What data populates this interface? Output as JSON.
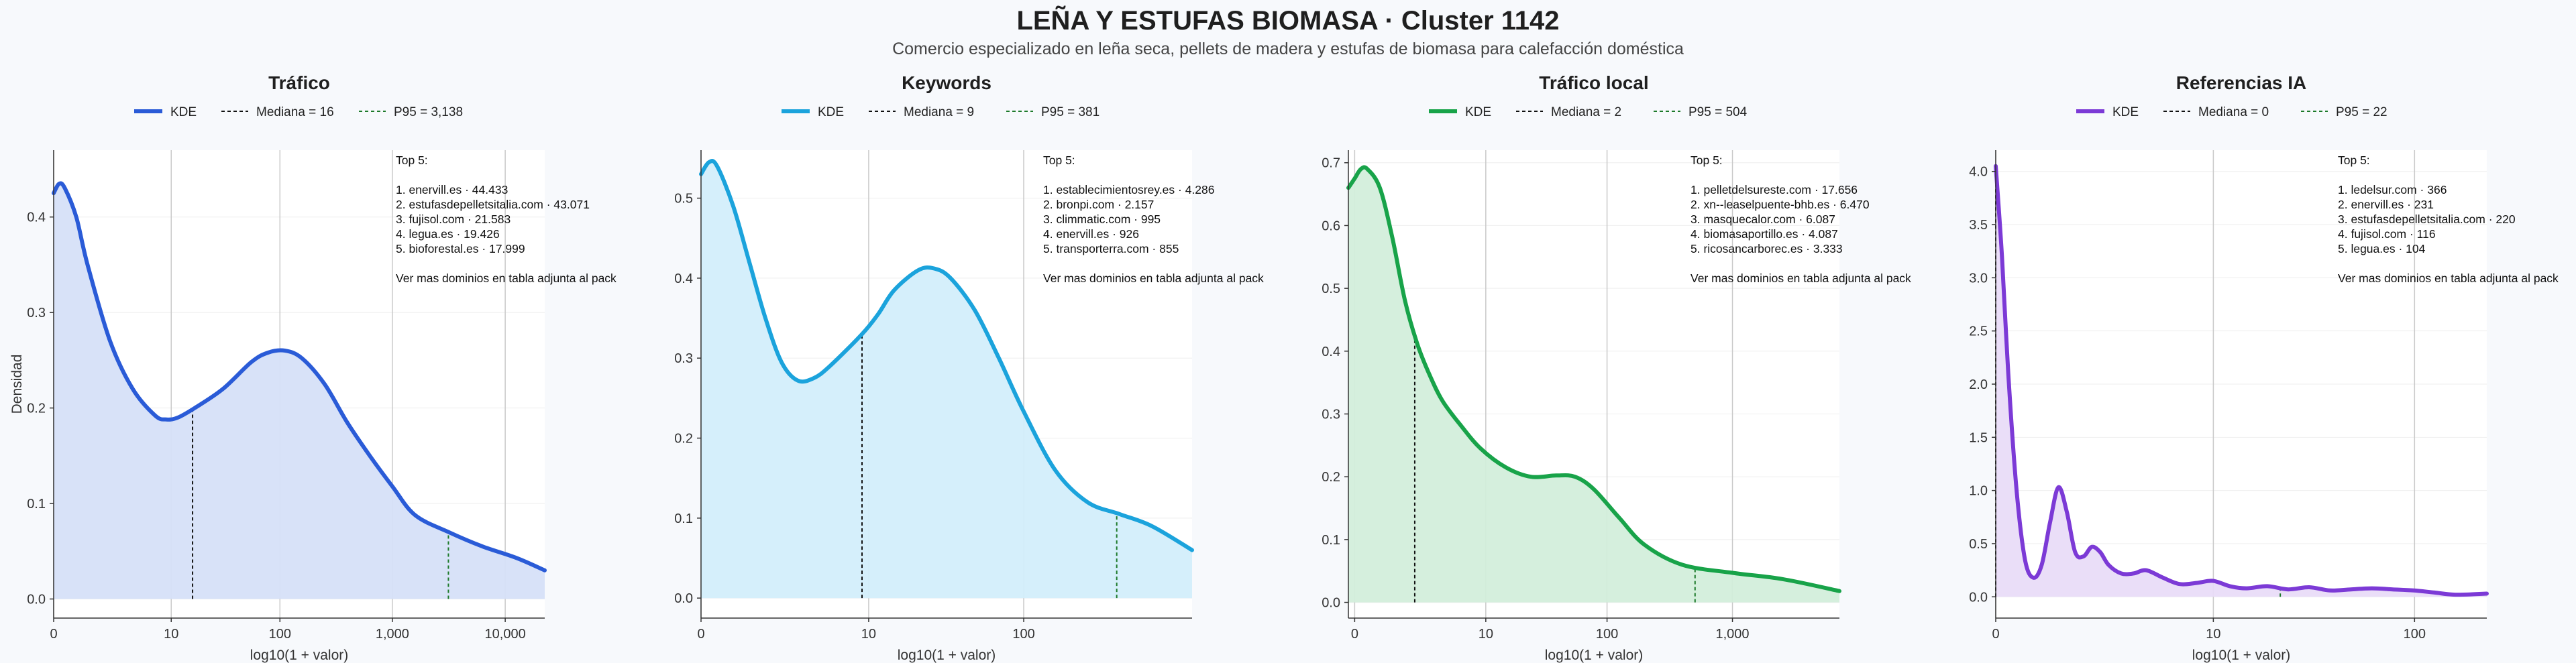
{
  "header": {
    "title": "LEÑA Y ESTUFAS BIOMASA · Cluster 1142",
    "subtitle": "Comercio especializado en leña seca, pellets de madera y estufas de biomasa para calefacción doméstica"
  },
  "chart_data": [
    {
      "type": "area",
      "title": "Tráfico",
      "xlabel": "log10(1 + valor)",
      "ylabel": "Densidad",
      "color": "#2a5bd7",
      "fill": "#d6e0f8",
      "x_scale": "log10(1+x)",
      "xlim": [
        0,
        4.35
      ],
      "ylim": [
        -0.02,
        0.47
      ],
      "x_ticks": [
        {
          "v": 0,
          "label": "0"
        },
        {
          "v": 10,
          "label": "10"
        },
        {
          "v": 100,
          "label": "100"
        },
        {
          "v": 1000,
          "label": "1,000"
        },
        {
          "v": 10000,
          "label": "10,000"
        }
      ],
      "y_ticks": [
        0.0,
        0.1,
        0.2,
        0.3,
        0.4
      ],
      "y_tick_labels": [
        "0.0",
        "0.1",
        "0.2",
        "0.3",
        "0.4"
      ],
      "legend": [
        "KDE",
        "Mediana = 16",
        "P95 = 3,138"
      ],
      "median": 16,
      "p95": 3138,
      "kde": {
        "x": [
          0,
          0.05,
          0.1,
          0.2,
          0.3,
          0.5,
          0.7,
          0.9,
          1.0,
          1.1,
          1.25,
          1.5,
          1.75,
          1.9,
          2.05,
          2.2,
          2.4,
          2.6,
          2.8,
          3.0,
          3.2,
          3.5,
          3.8,
          4.1,
          4.35
        ],
        "y": [
          0.425,
          0.435,
          0.43,
          0.4,
          0.35,
          0.27,
          0.22,
          0.192,
          0.188,
          0.19,
          0.2,
          0.22,
          0.248,
          0.258,
          0.26,
          0.252,
          0.225,
          0.185,
          0.15,
          0.118,
          0.088,
          0.07,
          0.055,
          0.043,
          0.03
        ]
      },
      "annotation": [
        "Top 5:",
        "",
        "1. enervill.es · 44.433",
        "2. estufasdepelletsitalia.com · 43.071",
        "3. fujisol.com · 21.583",
        "4. legua.es · 19.426",
        "5. bioforestal.es · 17.999",
        "",
        "Ver mas dominios en tabla adjunta al pack"
      ]
    },
    {
      "type": "area",
      "title": "Keywords",
      "xlabel": "log10(1 + valor)",
      "ylabel": "",
      "color": "#1ba3dc",
      "fill": "#d3eefb",
      "x_scale": "log10(1+x)",
      "xlim": [
        0,
        3.05
      ],
      "ylim": [
        -0.025,
        0.56
      ],
      "x_ticks": [
        {
          "v": 0,
          "label": "0"
        },
        {
          "v": 10,
          "label": "10"
        },
        {
          "v": 100,
          "label": "100"
        }
      ],
      "y_ticks": [
        0.0,
        0.1,
        0.2,
        0.3,
        0.4,
        0.5
      ],
      "y_tick_labels": [
        "0.0",
        "0.1",
        "0.2",
        "0.3",
        "0.4",
        "0.5"
      ],
      "legend": [
        "KDE",
        "Mediana = 9",
        "P95 = 381"
      ],
      "median": 9,
      "p95": 381,
      "kde": {
        "x": [
          0,
          0.05,
          0.1,
          0.2,
          0.3,
          0.4,
          0.5,
          0.6,
          0.7,
          0.8,
          1.0,
          1.1,
          1.2,
          1.35,
          1.45,
          1.55,
          1.7,
          1.85,
          2.0,
          2.2,
          2.4,
          2.6,
          2.8,
          3.05
        ],
        "y": [
          0.53,
          0.545,
          0.54,
          0.49,
          0.42,
          0.35,
          0.295,
          0.272,
          0.275,
          0.29,
          0.33,
          0.355,
          0.385,
          0.41,
          0.412,
          0.4,
          0.36,
          0.3,
          0.235,
          0.16,
          0.12,
          0.105,
          0.09,
          0.06
        ]
      },
      "annotation": [
        "Top 5:",
        "",
        "1. establecimientosrey.es · 4.286",
        "2. bronpi.com · 2.157",
        "3. climmatic.com · 995",
        "4. enervill.es · 926",
        "5. transporterra.com · 855",
        "",
        "Ver mas dominios en tabla adjunta al pack"
      ]
    },
    {
      "type": "area",
      "title": "Tráfico local",
      "xlabel": "log10(1 + valor)",
      "ylabel": "",
      "color": "#18a349",
      "fill": "#d3eedb",
      "x_scale": "log10(1+x)",
      "xlim": [
        -0.05,
        3.85
      ],
      "ylim": [
        -0.025,
        0.72
      ],
      "x_ticks": [
        {
          "v": 0,
          "label": "0"
        },
        {
          "v": 10,
          "label": "10"
        },
        {
          "v": 100,
          "label": "100"
        },
        {
          "v": 1000,
          "label": "1,000"
        }
      ],
      "y_ticks": [
        0.0,
        0.1,
        0.2,
        0.3,
        0.4,
        0.5,
        0.6,
        0.7
      ],
      "y_tick_labels": [
        "0.0",
        "0.1",
        "0.2",
        "0.3",
        "0.4",
        "0.5",
        "0.6",
        "0.7"
      ],
      "legend": [
        "KDE",
        "Mediana = 2",
        "P95 = 504"
      ],
      "median": 2,
      "p95": 504,
      "kde": {
        "x": [
          -0.05,
          0,
          0.05,
          0.1,
          0.2,
          0.3,
          0.4,
          0.5,
          0.6,
          0.7,
          0.85,
          1.0,
          1.2,
          1.4,
          1.6,
          1.75,
          1.9,
          2.1,
          2.3,
          2.6,
          3.0,
          3.4,
          3.85
        ],
        "y": [
          0.66,
          0.675,
          0.69,
          0.69,
          0.66,
          0.58,
          0.48,
          0.41,
          0.36,
          0.32,
          0.28,
          0.245,
          0.215,
          0.2,
          0.202,
          0.2,
          0.18,
          0.135,
          0.092,
          0.06,
          0.047,
          0.037,
          0.018
        ]
      },
      "annotation": [
        "Top 5:",
        "",
        "1. pelletdelsureste.com · 17.656",
        "2. xn--leaselpuente-bhb.es · 6.470",
        "3. masquecalor.com · 6.087",
        "4. biomasaportillo.es · 4.087",
        "5. ricosancarborec.es · 3.333",
        "",
        "Ver mas dominios en tabla adjunta al pack"
      ]
    },
    {
      "type": "area",
      "title": "Referencias IA",
      "xlabel": "log10(1 + valor)",
      "ylabel": "",
      "color": "#7c3ad6",
      "fill": "#e9dcf8",
      "x_scale": "log10(1+x)",
      "xlim": [
        0,
        2.35
      ],
      "ylim": [
        -0.2,
        4.2
      ],
      "x_ticks": [
        {
          "v": 0,
          "label": "0"
        },
        {
          "v": 10,
          "label": "10"
        },
        {
          "v": 100,
          "label": "100"
        }
      ],
      "y_ticks": [
        0.0,
        0.5,
        1.0,
        1.5,
        2.0,
        2.5,
        3.0,
        3.5,
        4.0
      ],
      "y_tick_labels": [
        "0.0",
        "0.5",
        "1.0",
        "1.5",
        "2.0",
        "2.5",
        "3.0",
        "3.5",
        "4.0"
      ],
      "legend": [
        "KDE",
        "Mediana = 0",
        "P95 = 22"
      ],
      "median": 0,
      "p95": 22,
      "kde": {
        "x": [
          0,
          0.03,
          0.06,
          0.1,
          0.14,
          0.18,
          0.22,
          0.26,
          0.3,
          0.34,
          0.38,
          0.42,
          0.46,
          0.5,
          0.54,
          0.6,
          0.66,
          0.72,
          0.8,
          0.88,
          0.96,
          1.04,
          1.12,
          1.2,
          1.3,
          1.4,
          1.5,
          1.6,
          1.7,
          1.8,
          1.9,
          2.0,
          2.1,
          2.2,
          2.35
        ],
        "y": [
          4.05,
          3.2,
          2.1,
          1.0,
          0.35,
          0.18,
          0.3,
          0.7,
          1.03,
          0.8,
          0.42,
          0.38,
          0.47,
          0.42,
          0.3,
          0.22,
          0.22,
          0.25,
          0.18,
          0.12,
          0.13,
          0.15,
          0.1,
          0.08,
          0.1,
          0.07,
          0.09,
          0.06,
          0.07,
          0.08,
          0.07,
          0.06,
          0.04,
          0.02,
          0.03
        ]
      },
      "annotation": [
        "Top 5:",
        "",
        "1. ledelsur.com · 366",
        "2. enervill.es · 231",
        "3. estufasdepelletsitalia.com · 220",
        "4. fujisol.com · 116",
        "5. legua.es · 104",
        "",
        "Ver mas dominios en tabla adjunta al pack"
      ]
    }
  ]
}
